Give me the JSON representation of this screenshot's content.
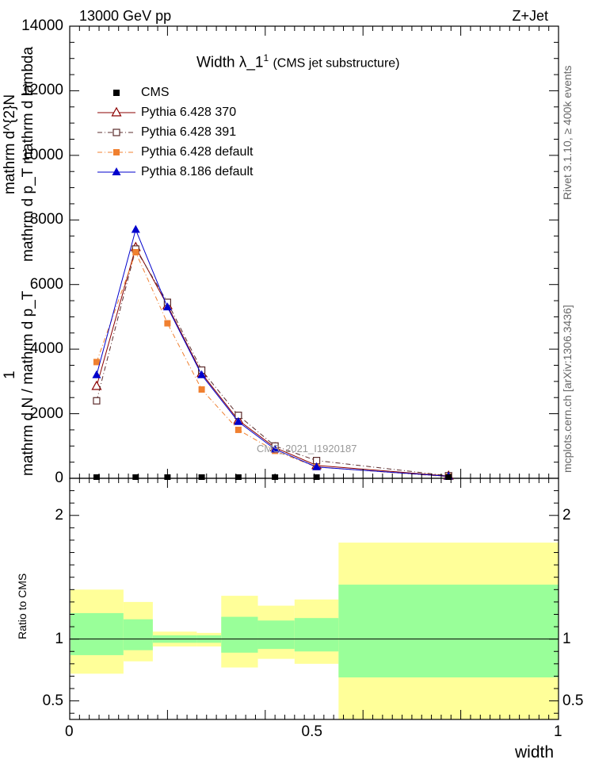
{
  "header": {
    "left": "13000 GeV pp",
    "right": "Z+Jet",
    "rivet": "Rivet 3.1.10, ≥ 400k events",
    "mcplots": "mcplots.cern.ch [arXiv:1306.3436]",
    "watermark": "CMS_2021_I1920187"
  },
  "chart_data": [
    {
      "type": "line",
      "title_main": "Width λ_1",
      "title_sup": "1",
      "title_sub": "(CMS jet substructure)",
      "ylabel_lines": [
        "1",
        "mathrm d N / mathrm d p_T",
        "mathrm d^{2}N",
        "mathrm d p_T mathrm d lambda"
      ],
      "ylim": [
        0,
        14000
      ],
      "xlim": [
        0,
        1
      ],
      "yticks": [
        0,
        2000,
        4000,
        6000,
        8000,
        10000,
        12000,
        14000
      ],
      "ytick_labels": [
        "0",
        "2000",
        "4000",
        "6000",
        "8000",
        "10000",
        "12000",
        "14000"
      ],
      "series": [
        {
          "name": "CMS",
          "color": "#000000",
          "marker": "filled-square",
          "linestyle": "none",
          "x": [
            0.055,
            0.135,
            0.2,
            0.27,
            0.345,
            0.42,
            0.505,
            0.775
          ],
          "y": [
            0,
            0,
            0,
            0,
            0,
            0,
            0,
            0
          ]
        },
        {
          "name": "Pythia 6.428 370",
          "color": "#8b0000",
          "marker": "open-triangle",
          "linestyle": "solid",
          "x": [
            0.055,
            0.135,
            0.2,
            0.27,
            0.345,
            0.42,
            0.505,
            0.775
          ],
          "y": [
            2850,
            7150,
            5350,
            3250,
            1800,
            950,
            400,
            70
          ]
        },
        {
          "name": "Pythia 6.428 391",
          "color": "#5b2c2c",
          "marker": "open-square",
          "linestyle": "dashdot",
          "x": [
            0.055,
            0.135,
            0.2,
            0.27,
            0.345,
            0.42,
            0.505,
            0.775
          ],
          "y": [
            2400,
            7100,
            5450,
            3350,
            1950,
            1000,
            550,
            80
          ]
        },
        {
          "name": "Pythia 6.428 default",
          "color": "#f08030",
          "marker": "filled-square",
          "linestyle": "dashdot",
          "x": [
            0.055,
            0.135,
            0.2,
            0.27,
            0.345,
            0.42,
            0.505,
            0.775
          ],
          "y": [
            3600,
            7000,
            4800,
            2750,
            1500,
            850,
            350,
            50
          ]
        },
        {
          "name": "Pythia 8.186 default",
          "color": "#0000cc",
          "marker": "filled-triangle",
          "linestyle": "solid",
          "x": [
            0.055,
            0.135,
            0.2,
            0.27,
            0.345,
            0.42,
            0.505,
            0.775
          ],
          "y": [
            3200,
            7700,
            5300,
            3200,
            1750,
            900,
            350,
            60
          ]
        }
      ]
    },
    {
      "type": "area",
      "ylabel": "Ratio to CMS",
      "xlabel": "width",
      "ylim": [
        0.35,
        2.3
      ],
      "xlim": [
        0,
        1
      ],
      "yticks": [
        0.5,
        1,
        2
      ],
      "ytick_labels": [
        "0.5",
        "1",
        "2"
      ],
      "xticks": [
        0,
        0.5,
        1
      ],
      "xtick_labels": [
        "0",
        "0.5",
        "1"
      ],
      "bin_edges": [
        0,
        0.11,
        0.17,
        0.26,
        0.31,
        0.385,
        0.46,
        0.55,
        1.0
      ],
      "band_2sigma_low": [
        0.72,
        0.82,
        0.94,
        0.94,
        0.77,
        0.84,
        0.8,
        0.35
      ],
      "band_2sigma_high": [
        1.4,
        1.3,
        1.06,
        1.05,
        1.35,
        1.27,
        1.32,
        1.78
      ],
      "band_1sigma_low": [
        0.87,
        0.91,
        0.97,
        0.97,
        0.89,
        0.92,
        0.9,
        0.69
      ],
      "band_1sigma_high": [
        1.21,
        1.16,
        1.03,
        1.03,
        1.18,
        1.15,
        1.17,
        1.44
      ],
      "colors": {
        "band_2sigma": "#ffff99",
        "band_1sigma": "#99ff99"
      }
    }
  ]
}
